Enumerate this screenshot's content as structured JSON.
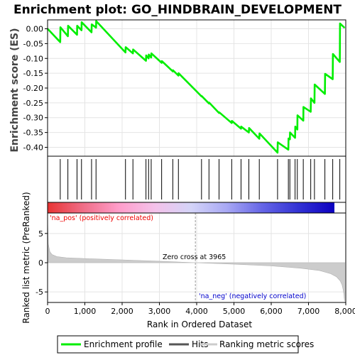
{
  "chart_data": {
    "type": "line",
    "title": "Enrichment plot: GO_HINDBRAIN_DEVELOPMENT",
    "ylabel": "Enrichment score (ES)",
    "ylabel_bottom": "Ranked list metric (PreRanked)",
    "xlabel": "Rank in Ordered Dataset",
    "xlim": [
      0,
      8000
    ],
    "ylim": [
      -0.43,
      0.03
    ],
    "ylim_bottom": [
      -6.8,
      8.5
    ],
    "x_ticks": [
      0,
      1000,
      2000,
      3000,
      4000,
      5000,
      6000,
      7000,
      8000
    ],
    "x_tick_labels": [
      "0",
      "1,000",
      "2,000",
      "3,000",
      "4,000",
      "5,000",
      "6,000",
      "7,000",
      "8,000"
    ],
    "y_ticks": [
      0.0,
      -0.05,
      -0.1,
      -0.15,
      -0.2,
      -0.25,
      -0.3,
      -0.35,
      -0.4
    ],
    "y_tick_labels": [
      "0.00",
      "-0.05",
      "-0.10",
      "-0.15",
      "-0.20",
      "-0.25",
      "-0.30",
      "-0.35",
      "-0.40"
    ],
    "y_ticks_bottom": [
      5,
      0,
      -5
    ],
    "y_tick_labels_bottom": [
      "5",
      "0",
      "-5"
    ],
    "es_curve": {
      "x": [
        0,
        340,
        345,
        545,
        550,
        790,
        795,
        910,
        915,
        1180,
        1185,
        1300,
        1305,
        2090,
        2095,
        2290,
        2295,
        2640,
        2645,
        2710,
        2715,
        2780,
        2785,
        3060,
        3065,
        3360,
        3365,
        3510,
        3515,
        4130,
        4135,
        4330,
        4335,
        4600,
        4605,
        4940,
        4945,
        5190,
        5195,
        5400,
        5405,
        5680,
        5685,
        6170,
        6175,
        6460,
        6465,
        6500,
        6505,
        6640,
        6645,
        6700,
        6705,
        6860,
        6865,
        7060,
        7065,
        7160,
        7165,
        7440,
        7445,
        7650,
        7655,
        7840,
        7845,
        7970
      ],
      "y": [
        0.0,
        -0.045,
        0.005,
        -0.025,
        0.01,
        -0.02,
        0.01,
        -0.005,
        0.022,
        -0.012,
        0.015,
        0.004,
        0.026,
        -0.08,
        -0.062,
        -0.083,
        -0.07,
        -0.108,
        -0.09,
        -0.1,
        -0.087,
        -0.097,
        -0.083,
        -0.115,
        -0.109,
        -0.144,
        -0.14,
        -0.158,
        -0.15,
        -0.228,
        -0.227,
        -0.252,
        -0.249,
        -0.284,
        -0.282,
        -0.318,
        -0.311,
        -0.337,
        -0.33,
        -0.35,
        -0.335,
        -0.371,
        -0.353,
        -0.418,
        -0.383,
        -0.408,
        -0.37,
        -0.373,
        -0.35,
        -0.368,
        -0.33,
        -0.34,
        -0.292,
        -0.31,
        -0.264,
        -0.28,
        -0.235,
        -0.25,
        -0.188,
        -0.22,
        -0.152,
        -0.17,
        -0.085,
        -0.112,
        0.018,
        0.003
      ]
    },
    "hits": [
      340,
      545,
      790,
      910,
      1180,
      1300,
      2090,
      2290,
      2640,
      2710,
      2780,
      3060,
      3360,
      3510,
      4130,
      4330,
      4600,
      4940,
      5190,
      5400,
      5680,
      6170,
      6460,
      6500,
      6640,
      6700,
      6860,
      7060,
      7160,
      7440,
      7650,
      7840
    ],
    "metric_curve": {
      "x": [
        0,
        20,
        60,
        120,
        250,
        500,
        1000,
        2000,
        3000,
        3965,
        5000,
        6000,
        6800,
        7300,
        7600,
        7750,
        7850,
        7900,
        7930,
        7950,
        7965,
        7970
      ],
      "y": [
        7.6,
        3.2,
        1.9,
        1.4,
        1.05,
        0.85,
        0.7,
        0.48,
        0.25,
        0.0,
        -0.25,
        -0.55,
        -0.95,
        -1.35,
        -1.9,
        -2.4,
        -3.1,
        -3.8,
        -4.6,
        -5.4,
        -6.4,
        -6.6
      ]
    },
    "zero_cross_rank": 3965,
    "annotations": {
      "zero_cross": "Zero cross at 3965",
      "pos": "'na_pos' (positively correlated)",
      "neg": "'na_neg' (negatively correlated)"
    },
    "legend": {
      "items": [
        "Enrichment profile",
        "Hits",
        "Ranking metric scores"
      ],
      "placement": "bottom"
    },
    "colors": {
      "es_line": "#00ee00",
      "hit": "#000000",
      "metric_fill": "#cccccc",
      "pos_text": "#ee0000",
      "neg_text": "#0000cc",
      "grid": "#e4e4e4",
      "heat_stops": [
        "#e83434",
        "#f06e88",
        "#ff9ecb",
        "#f4c2ea",
        "#d4d4f8",
        "#a8a8f4",
        "#6464e6",
        "#3232d4",
        "#0c00c0"
      ]
    }
  }
}
